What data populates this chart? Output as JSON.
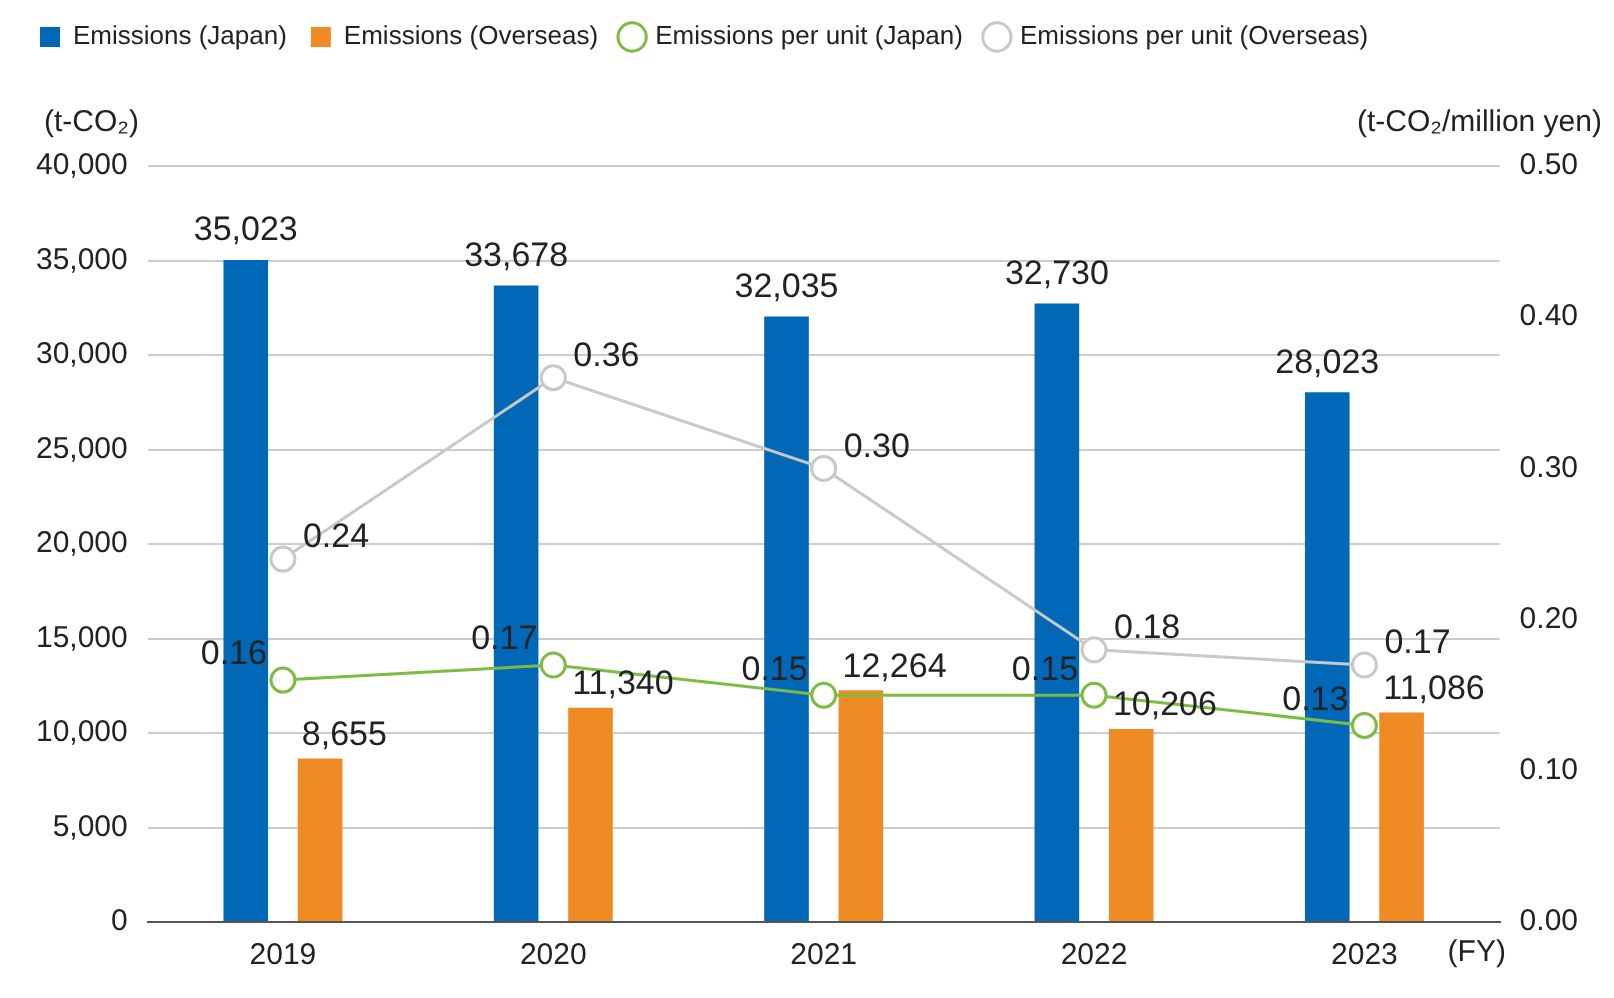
{
  "chart_data": {
    "type": "bar",
    "categories": [
      "2019",
      "2020",
      "2021",
      "2022",
      "2023"
    ],
    "xlabel": "(FY)",
    "ylabel": "(t-CO₂)",
    "y2label": "(t-CO₂/million yen)",
    "series": [
      {
        "name": "Emissions (Japan)",
        "color": "#0068b7",
        "values": [
          35023,
          33678,
          32035,
          32730,
          28023
        ],
        "value_labels": [
          "35,023",
          "33,678",
          "32,035",
          "32,730",
          "28,023"
        ]
      },
      {
        "name": "Emissions (Overseas)",
        "color": "#f08a24",
        "values": [
          8655,
          11340,
          12264,
          10206,
          11086
        ],
        "value_labels": [
          "8,655",
          "11,340",
          "12,264",
          "10,206",
          "11,086"
        ]
      },
      {
        "name": "Emissions per unit (Japan)",
        "type": "line",
        "axis": "y2",
        "color": "#7dbb42",
        "values": [
          0.16,
          0.17,
          0.15,
          0.15,
          0.13
        ],
        "value_labels": [
          "0.16",
          "0.17",
          "0.15",
          "0.15",
          "0.13"
        ]
      },
      {
        "name": "Emissions per unit (Overseas)",
        "type": "line",
        "axis": "y2",
        "color": "#c8c8c8",
        "values": [
          0.24,
          0.36,
          0.3,
          0.18,
          0.17
        ],
        "value_labels": [
          "0.24",
          "0.36",
          "0.30",
          "0.18",
          "0.17"
        ]
      }
    ],
    "ylim": [
      0,
      40000
    ],
    "yticks": [
      0,
      {
        "value": 5000,
        "label": "5,000"
      },
      {
        "value": 10000,
        "label": "10,000"
      },
      {
        "value": 15000,
        "label": "15,000"
      },
      {
        "value": 20000,
        "label": "20,000"
      },
      {
        "value": 25000,
        "label": "25,000"
      },
      {
        "value": 30000,
        "label": "30,000"
      },
      {
        "value": 35000,
        "label": "35,000"
      },
      {
        "value": 40000,
        "label": "40,000"
      }
    ],
    "y2lim": [
      0,
      0.5
    ],
    "y2ticks": [
      {
        "value": 0,
        "label": "0.00"
      },
      {
        "value": 0.1,
        "label": "0.10"
      },
      {
        "value": 0.2,
        "label": "0.20"
      },
      {
        "value": 0.3,
        "label": "0.30"
      },
      {
        "value": 0.4,
        "label": "0.40"
      },
      {
        "value": 0.5,
        "label": "0.50"
      }
    ],
    "grid": "y",
    "legend": "top",
    "marker": "circle",
    "line_style": "solid"
  }
}
